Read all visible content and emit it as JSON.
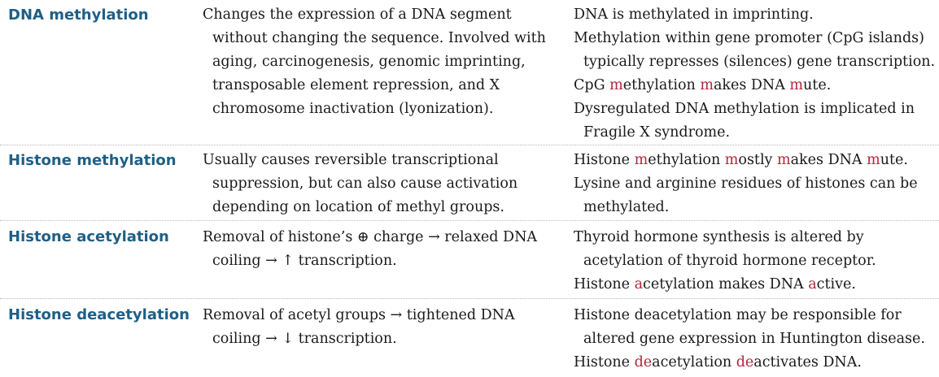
{
  "rows": [
    {
      "term": "DNA methylation",
      "desc": [
        {
          "indent": false,
          "parts": [
            {
              "t": "Changes the expression of a DNA segment"
            }
          ]
        },
        {
          "indent": true,
          "parts": [
            {
              "t": "without changing the sequence. Involved with"
            }
          ]
        },
        {
          "indent": true,
          "parts": [
            {
              "t": "aging, carcinogenesis, genomic imprinting,"
            }
          ]
        },
        {
          "indent": true,
          "parts": [
            {
              "t": "transposable element repression, and X"
            }
          ]
        },
        {
          "indent": true,
          "parts": [
            {
              "t": "chromosome inactivation (lyonization)."
            }
          ]
        }
      ],
      "notes": [
        {
          "indent": false,
          "parts": [
            {
              "t": "DNA is methylated in imprinting."
            }
          ]
        },
        {
          "indent": false,
          "parts": [
            {
              "t": "Methylation within gene promoter (CpG islands)"
            }
          ]
        },
        {
          "indent": true,
          "parts": [
            {
              "t": "typically represses (silences) gene transcription."
            }
          ]
        },
        {
          "indent": false,
          "parts": [
            {
              "t": "CpG "
            },
            {
              "t": "m",
              "hl": true
            },
            {
              "t": "ethylation "
            },
            {
              "t": "m",
              "hl": true
            },
            {
              "t": "akes DNA "
            },
            {
              "t": "m",
              "hl": true
            },
            {
              "t": "ute."
            }
          ]
        },
        {
          "indent": false,
          "parts": [
            {
              "t": "Dysregulated DNA methylation is implicated in"
            }
          ]
        },
        {
          "indent": true,
          "parts": [
            {
              "t": "Fragile X syndrome."
            }
          ]
        }
      ]
    },
    {
      "term": "Histone methylation",
      "desc": [
        {
          "indent": false,
          "parts": [
            {
              "t": "Usually causes reversible transcriptional"
            }
          ]
        },
        {
          "indent": true,
          "parts": [
            {
              "t": "suppression, but can also cause activation"
            }
          ]
        },
        {
          "indent": true,
          "parts": [
            {
              "t": "depending on location of methyl groups."
            }
          ]
        }
      ],
      "notes": [
        {
          "indent": false,
          "parts": [
            {
              "t": "Histone "
            },
            {
              "t": "m",
              "hl": true
            },
            {
              "t": "ethylation "
            },
            {
              "t": "m",
              "hl": true
            },
            {
              "t": "ostly "
            },
            {
              "t": "m",
              "hl": true
            },
            {
              "t": "akes DNA "
            },
            {
              "t": "m",
              "hl": true
            },
            {
              "t": "ute."
            }
          ]
        },
        {
          "indent": false,
          "parts": [
            {
              "t": "Lysine and arginine residues of histones can be"
            }
          ]
        },
        {
          "indent": true,
          "parts": [
            {
              "t": "methylated."
            }
          ]
        }
      ]
    },
    {
      "term": "Histone acetylation",
      "desc": [
        {
          "indent": false,
          "parts": [
            {
              "t": "Removal of histone’s ⊕ charge → relaxed DNA"
            }
          ]
        },
        {
          "indent": true,
          "parts": [
            {
              "t": "coiling → ↑ transcription."
            }
          ]
        }
      ],
      "notes": [
        {
          "indent": false,
          "parts": [
            {
              "t": "Thyroid hormone synthesis is altered by"
            }
          ]
        },
        {
          "indent": true,
          "parts": [
            {
              "t": "acetylation of thyroid hormone receptor."
            }
          ]
        },
        {
          "indent": false,
          "parts": [
            {
              "t": "Histone "
            },
            {
              "t": "a",
              "hl": true
            },
            {
              "t": "cetylation makes DNA "
            },
            {
              "t": "a",
              "hl": true
            },
            {
              "t": "ctive."
            }
          ]
        }
      ]
    },
    {
      "term": "Histone deacetylation",
      "desc": [
        {
          "indent": false,
          "parts": [
            {
              "t": "Removal of acetyl groups → tightened DNA"
            }
          ]
        },
        {
          "indent": true,
          "parts": [
            {
              "t": "coiling → ↓ transcription."
            }
          ]
        }
      ],
      "notes": [
        {
          "indent": false,
          "parts": [
            {
              "t": "Histone deacetylation may be responsible for"
            }
          ]
        },
        {
          "indent": true,
          "parts": [
            {
              "t": "altered gene expression in Huntington disease."
            }
          ]
        },
        {
          "indent": false,
          "parts": [
            {
              "t": "Histone "
            },
            {
              "t": "de",
              "hl": true
            },
            {
              "t": "acetylation "
            },
            {
              "t": "de",
              "hl": true
            },
            {
              "t": "activates DNA."
            }
          ]
        }
      ]
    }
  ]
}
